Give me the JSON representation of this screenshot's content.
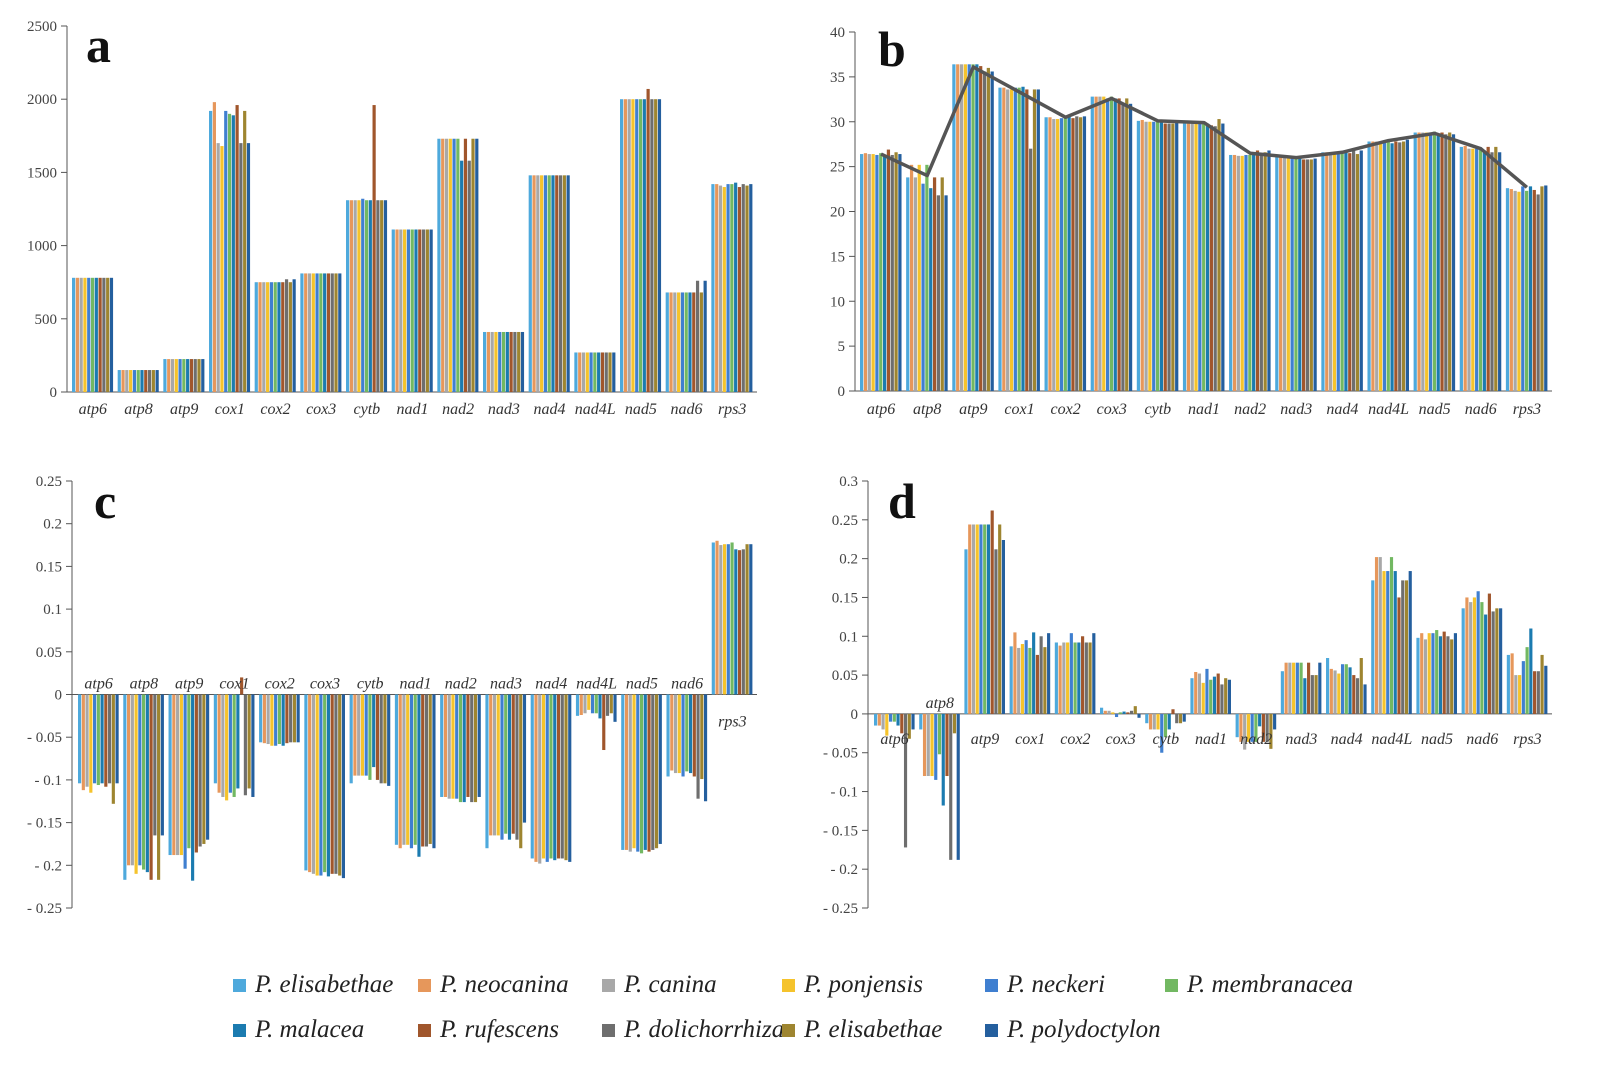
{
  "colors": [
    "#4ea9dc",
    "#e6975b",
    "#a8a8a8",
    "#f5c32c",
    "#3f7fd0",
    "#72b862",
    "#1b7bb0",
    "#a0562c",
    "#6e6e6e",
    "#9e8530",
    "#245f9e"
  ],
  "legend": [
    "P. elisabethae",
    "P. neocanina",
    "P. canina",
    "P. ponjensis",
    "P. neckeri",
    "P. membranacea",
    "P. malacea",
    "P. rufescens",
    "P. dolichorrhiza",
    "P. elisabethae",
    "P. polydoctylon"
  ],
  "chart_data": [
    {
      "panel": "a",
      "type": "bar",
      "categories": [
        "atp6",
        "atp8",
        "atp9",
        "cox1",
        "cox2",
        "cox3",
        "cytb",
        "nad1",
        "nad2",
        "nad3",
        "nad4",
        "nad4L",
        "nad5",
        "nad6",
        "rps3"
      ],
      "ylim": [
        0,
        2500
      ],
      "yticks": [
        0,
        500,
        1000,
        1500,
        2000,
        2500
      ],
      "yticklabels": [
        "0",
        "500",
        "1000",
        "1500",
        "2000",
        "2500"
      ],
      "values": [
        [
          780,
          780,
          780,
          780,
          780,
          780,
          780,
          780,
          780,
          780,
          780
        ],
        [
          150,
          150,
          150,
          150,
          150,
          150,
          150,
          150,
          150,
          150,
          150
        ],
        [
          225,
          225,
          225,
          225,
          225,
          225,
          225,
          225,
          225,
          225,
          225
        ],
        [
          1920,
          1980,
          1700,
          1680,
          1920,
          1900,
          1890,
          1960,
          1700,
          1920,
          1700
        ],
        [
          750,
          750,
          750,
          750,
          750,
          750,
          750,
          750,
          770,
          750,
          770
        ],
        [
          810,
          810,
          810,
          810,
          810,
          810,
          810,
          810,
          810,
          810,
          810
        ],
        [
          1310,
          1310,
          1310,
          1310,
          1320,
          1310,
          1310,
          1960,
          1310,
          1310,
          1310
        ],
        [
          1110,
          1110,
          1110,
          1110,
          1110,
          1110,
          1110,
          1110,
          1110,
          1110,
          1110
        ],
        [
          1730,
          1730,
          1730,
          1730,
          1730,
          1730,
          1580,
          1730,
          1580,
          1730,
          1730
        ],
        [
          410,
          410,
          410,
          410,
          410,
          410,
          410,
          410,
          410,
          410,
          410
        ],
        [
          1480,
          1480,
          1480,
          1480,
          1480,
          1480,
          1480,
          1480,
          1480,
          1480,
          1480
        ],
        [
          270,
          270,
          270,
          270,
          270,
          270,
          270,
          270,
          270,
          270,
          270
        ],
        [
          2000,
          2000,
          2000,
          2000,
          2000,
          2000,
          2000,
          2070,
          2000,
          2000,
          2000
        ],
        [
          680,
          680,
          680,
          680,
          680,
          680,
          680,
          680,
          760,
          680,
          760
        ],
        [
          1420,
          1420,
          1410,
          1400,
          1420,
          1420,
          1430,
          1400,
          1420,
          1410,
          1420
        ]
      ]
    },
    {
      "panel": "b",
      "type": "bar+line",
      "categories": [
        "atp6",
        "atp8",
        "atp9",
        "cox1",
        "cox2",
        "cox3",
        "cytb",
        "nad1",
        "nad2",
        "nad3",
        "nad4",
        "nad4L",
        "nad5",
        "nad6",
        "rps3"
      ],
      "ylim": [
        0,
        40
      ],
      "yticks": [
        0,
        5,
        10,
        15,
        20,
        25,
        30,
        35,
        40
      ],
      "yticklabels": [
        "0",
        "5",
        "10",
        "15",
        "20",
        "25",
        "30",
        "35",
        "40"
      ],
      "values": [
        [
          26.4,
          26.5,
          26.4,
          26.4,
          26.3,
          26.5,
          26.3,
          26.9,
          26.3,
          26.6,
          26.4
        ],
        [
          23.8,
          25.2,
          23.8,
          25.2,
          23.1,
          25.2,
          22.6,
          23.8,
          21.8,
          23.8,
          21.8
        ],
        [
          36.4,
          36.4,
          36.4,
          36.4,
          36.4,
          36.4,
          36.4,
          36.2,
          35.6,
          36.0,
          35.6
        ],
        [
          33.8,
          33.8,
          33.6,
          33.6,
          33.8,
          33.8,
          33.9,
          33.6,
          27.0,
          33.6,
          33.6
        ],
        [
          30.5,
          30.5,
          30.3,
          30.3,
          30.4,
          30.5,
          30.6,
          30.4,
          30.6,
          30.5,
          30.6
        ],
        [
          32.8,
          32.8,
          32.8,
          32.8,
          32.6,
          32.8,
          32.6,
          32.6,
          32.0,
          32.6,
          32.0
        ],
        [
          30.1,
          30.2,
          30.0,
          30.0,
          30.0,
          30.2,
          30.0,
          29.8,
          29.8,
          29.8,
          29.9
        ],
        [
          29.8,
          29.8,
          29.8,
          29.8,
          29.9,
          29.8,
          29.8,
          29.6,
          29.5,
          30.3,
          29.8
        ],
        [
          26.3,
          26.3,
          26.2,
          26.2,
          26.3,
          26.3,
          26.4,
          26.8,
          26.2,
          26.6,
          26.8
        ],
        [
          26.1,
          26.1,
          26.0,
          26.0,
          26.0,
          26.1,
          26.0,
          25.8,
          25.8,
          25.8,
          25.9
        ],
        [
          26.6,
          26.6,
          26.4,
          26.6,
          26.5,
          26.6,
          26.6,
          26.5,
          26.8,
          26.4,
          26.8
        ],
        [
          27.8,
          27.8,
          27.8,
          27.8,
          27.8,
          28.0,
          27.6,
          27.8,
          27.7,
          27.8,
          28.0
        ],
        [
          28.8,
          28.8,
          28.8,
          28.8,
          28.8,
          28.9,
          28.6,
          28.8,
          28.6,
          28.8,
          28.6
        ],
        [
          27.2,
          27.3,
          27.0,
          27.0,
          27.0,
          27.1,
          26.8,
          27.2,
          26.6,
          27.2,
          26.6
        ],
        [
          22.6,
          22.5,
          22.3,
          22.2,
          22.8,
          22.3,
          22.8,
          22.4,
          21.9,
          22.8,
          22.9
        ]
      ],
      "line": [
        26.4,
        24.0,
        36.1,
        33.3,
        30.5,
        32.6,
        30.1,
        29.9,
        26.5,
        26.0,
        26.6,
        27.9,
        28.7,
        27.0,
        22.7
      ]
    },
    {
      "panel": "c",
      "type": "bar",
      "categories": [
        "atp6",
        "atp8",
        "atp9",
        "cox1",
        "cox2",
        "cox3",
        "cytb",
        "nad1",
        "nad2",
        "nad3",
        "nad4",
        "nad4L",
        "nad5",
        "nad6",
        "rps3"
      ],
      "ylim": [
        -0.25,
        0.25
      ],
      "yticks": [
        -0.25,
        -0.2,
        -0.15,
        -0.1,
        -0.05,
        0,
        0.05,
        0.1,
        0.15,
        0.2,
        0.25
      ],
      "yticklabels": [
        "- 0.25",
        "- 0.2",
        "- 0.15",
        "- 0.1",
        "- 0.05",
        "0",
        "0.05",
        "0.1",
        "0.15",
        "0.2",
        "0.25"
      ],
      "values": [
        [
          -0.104,
          -0.112,
          -0.108,
          -0.115,
          -0.104,
          -0.106,
          -0.104,
          -0.108,
          -0.104,
          -0.128,
          -0.104
        ],
        [
          -0.217,
          -0.2,
          -0.2,
          -0.21,
          -0.2,
          -0.205,
          -0.208,
          -0.217,
          -0.165,
          -0.217,
          -0.165
        ],
        [
          -0.188,
          -0.188,
          -0.188,
          -0.188,
          -0.204,
          -0.18,
          -0.218,
          -0.185,
          -0.178,
          -0.175,
          -0.17
        ],
        [
          -0.104,
          -0.115,
          -0.12,
          -0.124,
          -0.115,
          -0.12,
          -0.11,
          0.02,
          -0.118,
          -0.11,
          -0.12
        ],
        [
          -0.056,
          -0.057,
          -0.058,
          -0.06,
          -0.06,
          -0.058,
          -0.06,
          -0.057,
          -0.056,
          -0.056,
          -0.056
        ],
        [
          -0.206,
          -0.208,
          -0.21,
          -0.212,
          -0.212,
          -0.208,
          -0.213,
          -0.21,
          -0.21,
          -0.212,
          -0.215
        ],
        [
          -0.104,
          -0.095,
          -0.095,
          -0.095,
          -0.095,
          -0.1,
          -0.085,
          -0.1,
          -0.104,
          -0.104,
          -0.107
        ],
        [
          -0.176,
          -0.18,
          -0.176,
          -0.176,
          -0.18,
          -0.176,
          -0.19,
          -0.178,
          -0.178,
          -0.175,
          -0.18
        ],
        [
          -0.12,
          -0.12,
          -0.122,
          -0.122,
          -0.122,
          -0.126,
          -0.126,
          -0.12,
          -0.126,
          -0.126,
          -0.12
        ],
        [
          -0.18,
          -0.165,
          -0.165,
          -0.165,
          -0.17,
          -0.163,
          -0.17,
          -0.163,
          -0.17,
          -0.18,
          -0.15
        ],
        [
          -0.192,
          -0.196,
          -0.198,
          -0.192,
          -0.196,
          -0.192,
          -0.194,
          -0.192,
          -0.192,
          -0.194,
          -0.196
        ],
        [
          -0.025,
          -0.024,
          -0.022,
          -0.018,
          -0.022,
          -0.022,
          -0.028,
          -0.065,
          -0.025,
          -0.022,
          -0.032
        ],
        [
          -0.182,
          -0.182,
          -0.184,
          -0.18,
          -0.184,
          -0.186,
          -0.182,
          -0.184,
          -0.182,
          -0.18,
          -0.175
        ],
        [
          -0.096,
          -0.089,
          -0.092,
          -0.092,
          -0.096,
          -0.09,
          -0.092,
          -0.096,
          -0.122,
          -0.099,
          -0.125
        ],
        [
          0.178,
          0.18,
          0.175,
          0.176,
          0.176,
          0.178,
          0.17,
          0.169,
          0.17,
          0.176,
          0.176
        ]
      ]
    },
    {
      "panel": "d",
      "type": "bar",
      "categories": [
        "atp6",
        "atp8",
        "atp9",
        "cox1",
        "cox2",
        "cox3",
        "cytb",
        "nad1",
        "nad2",
        "nad3",
        "nad4",
        "nad4L",
        "nad5",
        "nad6",
        "rps3"
      ],
      "ylim": [
        -0.25,
        0.3
      ],
      "yticks": [
        -0.25,
        -0.2,
        -0.15,
        -0.1,
        -0.05,
        0,
        0.05,
        0.1,
        0.15,
        0.2,
        0.25,
        0.3
      ],
      "yticklabels": [
        "- 0.25",
        "- 0.2",
        "- 0.15",
        "- 0.1",
        "- 0.05",
        "0",
        "0.05",
        "0.1",
        "0.15",
        "0.2",
        "0.25",
        "0.3"
      ],
      "values": [
        [
          -0.015,
          -0.015,
          -0.02,
          -0.028,
          -0.01,
          -0.01,
          -0.015,
          -0.025,
          -0.172,
          -0.032,
          -0.02
        ],
        [
          -0.02,
          -0.08,
          -0.08,
          -0.08,
          -0.085,
          -0.052,
          -0.118,
          -0.08,
          -0.188,
          -0.025,
          -0.188
        ],
        [
          0.212,
          0.244,
          0.244,
          0.244,
          0.244,
          0.244,
          0.244,
          0.262,
          0.212,
          0.244,
          0.224
        ],
        [
          0.087,
          0.105,
          0.085,
          0.09,
          0.095,
          0.085,
          0.105,
          0.076,
          0.1,
          0.086,
          0.104
        ],
        [
          0.092,
          0.088,
          0.092,
          0.092,
          0.104,
          0.092,
          0.092,
          0.1,
          0.092,
          0.092,
          0.104
        ],
        [
          0.008,
          0.004,
          0.004,
          0.002,
          -0.004,
          0.002,
          0.003,
          0.002,
          0.004,
          0.01,
          -0.005
        ],
        [
          -0.012,
          -0.02,
          -0.02,
          -0.02,
          -0.05,
          -0.03,
          -0.02,
          0.006,
          -0.012,
          -0.012,
          -0.01
        ],
        [
          0.046,
          0.054,
          0.052,
          0.04,
          0.058,
          0.044,
          0.048,
          0.052,
          0.038,
          0.046,
          0.044
        ],
        [
          -0.03,
          -0.036,
          -0.046,
          -0.036,
          -0.036,
          -0.036,
          -0.016,
          -0.036,
          -0.036,
          -0.045,
          -0.02
        ],
        [
          0.055,
          0.066,
          0.066,
          0.066,
          0.066,
          0.066,
          0.046,
          0.066,
          0.05,
          0.05,
          0.066
        ],
        [
          0.072,
          0.058,
          0.056,
          0.052,
          0.064,
          0.064,
          0.06,
          0.05,
          0.046,
          0.072,
          0.038
        ],
        [
          0.172,
          0.202,
          0.202,
          0.184,
          0.184,
          0.202,
          0.184,
          0.15,
          0.172,
          0.172,
          0.184
        ],
        [
          0.098,
          0.104,
          0.096,
          0.104,
          0.104,
          0.108,
          0.1,
          0.106,
          0.1,
          0.096,
          0.104
        ],
        [
          0.136,
          0.15,
          0.144,
          0.15,
          0.158,
          0.144,
          0.128,
          0.155,
          0.132,
          0.136,
          0.136
        ],
        [
          0.076,
          0.078,
          0.05,
          0.05,
          0.068,
          0.086,
          0.11,
          0.055,
          0.055,
          0.076,
          0.062
        ]
      ]
    }
  ]
}
